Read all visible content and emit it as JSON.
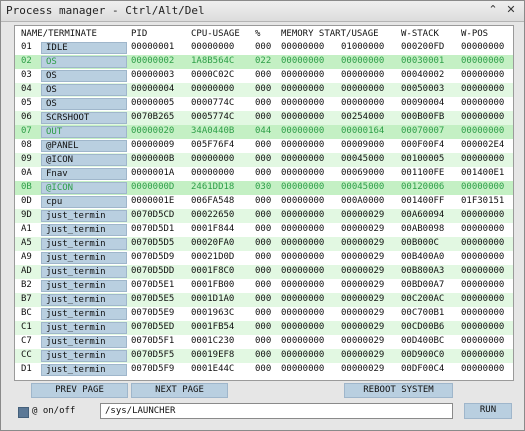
{
  "window": {
    "title": "Process manager - Ctrl/Alt/Del",
    "close_glyph": "✕",
    "collapse_glyph": "⌃"
  },
  "columns": [
    "NAME/TERMINATE",
    "PID",
    "CPU-USAGE",
    "%",
    "MEMORY START/USAGE",
    "",
    "W-STACK",
    "W-POS"
  ],
  "rows": [
    {
      "num": "01",
      "name": "IDLE",
      "pid": "00000001",
      "cpu": "00000000",
      "pct": "000",
      "mem_start": "00000000",
      "mem_usage": "01000000",
      "wstack": "000200FD",
      "wpos": "00000000",
      "state": "normal"
    },
    {
      "num": "02",
      "name": "OS",
      "pid": "00000002",
      "cpu": "1A8B564C",
      "pct": "022",
      "mem_start": "00000000",
      "mem_usage": "00000000",
      "wstack": "00030001",
      "wpos": "00000000",
      "state": "selected"
    },
    {
      "num": "03",
      "name": "OS",
      "pid": "00000003",
      "cpu": "0000C02C",
      "pct": "000",
      "mem_start": "00000000",
      "mem_usage": "00000000",
      "wstack": "00040002",
      "wpos": "00000000",
      "state": "normal"
    },
    {
      "num": "04",
      "name": "OS",
      "pid": "00000004",
      "cpu": "00000000",
      "pct": "000",
      "mem_start": "00000000",
      "mem_usage": "00000000",
      "wstack": "00050003",
      "wpos": "00000000",
      "state": "green"
    },
    {
      "num": "05",
      "name": "OS",
      "pid": "00000005",
      "cpu": "0000774C",
      "pct": "000",
      "mem_start": "00000000",
      "mem_usage": "00000000",
      "wstack": "00090004",
      "wpos": "00000000",
      "state": "normal"
    },
    {
      "num": "06",
      "name": "SCRSHOOT",
      "pid": "0070B265",
      "cpu": "0005774C",
      "pct": "000",
      "mem_start": "00000000",
      "mem_usage": "00254000",
      "wstack": "000B00FB",
      "wpos": "00000000",
      "state": "green"
    },
    {
      "num": "07",
      "name": "OUT",
      "pid": "00000020",
      "cpu": "34A0440B",
      "pct": "044",
      "mem_start": "00000000",
      "mem_usage": "00000164",
      "wstack": "00070007",
      "wpos": "00000000",
      "state": "selected"
    },
    {
      "num": "08",
      "name": "@PANEL",
      "pid": "00000009",
      "cpu": "005F76F4",
      "pct": "000",
      "mem_start": "00000000",
      "mem_usage": "00009000",
      "wstack": "000F00F4",
      "wpos": "000002E4",
      "state": "normal"
    },
    {
      "num": "09",
      "name": "@ICON",
      "pid": "0000000B",
      "cpu": "00000000",
      "pct": "000",
      "mem_start": "00000000",
      "mem_usage": "00045000",
      "wstack": "00100005",
      "wpos": "00000000",
      "state": "green"
    },
    {
      "num": "0A",
      "name": "Fnav",
      "pid": "0000001A",
      "cpu": "00000000",
      "pct": "000",
      "mem_start": "00000000",
      "mem_usage": "00069000",
      "wstack": "001100FE",
      "wpos": "001400E1",
      "state": "normal"
    },
    {
      "num": "0B",
      "name": "@ICON",
      "pid": "0000000D",
      "cpu": "2461DD18",
      "pct": "030",
      "mem_start": "00000000",
      "mem_usage": "00045000",
      "wstack": "00120006",
      "wpos": "00000000",
      "state": "selected"
    },
    {
      "num": "0D",
      "name": "cpu",
      "pid": "0000001E",
      "cpu": "006FA548",
      "pct": "000",
      "mem_start": "00000000",
      "mem_usage": "000A0000",
      "wstack": "001400FF",
      "wpos": "01F30151",
      "state": "normal"
    },
    {
      "num": "9D",
      "name": "just_termin",
      "pid": "0070D5CD",
      "cpu": "00022650",
      "pct": "000",
      "mem_start": "00000000",
      "mem_usage": "00000029",
      "wstack": "00A60094",
      "wpos": "00000000",
      "state": "green"
    },
    {
      "num": "A1",
      "name": "just_termin",
      "pid": "0070D5D1",
      "cpu": "0001F844",
      "pct": "000",
      "mem_start": "00000000",
      "mem_usage": "00000029",
      "wstack": "00AB0098",
      "wpos": "00000000",
      "state": "normal"
    },
    {
      "num": "A5",
      "name": "just_termin",
      "pid": "0070D5D5",
      "cpu": "00020FA0",
      "pct": "000",
      "mem_start": "00000000",
      "mem_usage": "00000029",
      "wstack": "00B000C",
      "wpos": "00000000",
      "state": "green"
    },
    {
      "num": "A9",
      "name": "just_termin",
      "pid": "0070D5D9",
      "cpu": "00021D0D",
      "pct": "000",
      "mem_start": "00000000",
      "mem_usage": "00000029",
      "wstack": "00B400A0",
      "wpos": "00000000",
      "state": "normal"
    },
    {
      "num": "AD",
      "name": "just_termin",
      "pid": "0070D5DD",
      "cpu": "0001F8C0",
      "pct": "000",
      "mem_start": "00000000",
      "mem_usage": "00000029",
      "wstack": "00B800A3",
      "wpos": "00000000",
      "state": "green"
    },
    {
      "num": "B2",
      "name": "just_termin",
      "pid": "0070D5E1",
      "cpu": "0001FB00",
      "pct": "000",
      "mem_start": "00000000",
      "mem_usage": "00000029",
      "wstack": "00BD00A7",
      "wpos": "00000000",
      "state": "normal"
    },
    {
      "num": "B7",
      "name": "just_termin",
      "pid": "0070D5E5",
      "cpu": "0001D1A0",
      "pct": "000",
      "mem_start": "00000000",
      "mem_usage": "00000029",
      "wstack": "00C200AC",
      "wpos": "00000000",
      "state": "green"
    },
    {
      "num": "BC",
      "name": "just_termin",
      "pid": "0070D5E9",
      "cpu": "0001963C",
      "pct": "000",
      "mem_start": "00000000",
      "mem_usage": "00000029",
      "wstack": "00C700B1",
      "wpos": "00000000",
      "state": "normal"
    },
    {
      "num": "C1",
      "name": "just_termin",
      "pid": "0070D5ED",
      "cpu": "0001FB54",
      "pct": "000",
      "mem_start": "00000000",
      "mem_usage": "00000029",
      "wstack": "00CD00B6",
      "wpos": "00000000",
      "state": "green"
    },
    {
      "num": "C7",
      "name": "just_termin",
      "pid": "0070D5F1",
      "cpu": "0001C230",
      "pct": "000",
      "mem_start": "00000000",
      "mem_usage": "00000029",
      "wstack": "00D400BC",
      "wpos": "00000000",
      "state": "normal"
    },
    {
      "num": "CC",
      "name": "just_termin",
      "pid": "0070D5F5",
      "cpu": "00019EF8",
      "pct": "000",
      "mem_start": "00000000",
      "mem_usage": "00000029",
      "wstack": "00D900C0",
      "wpos": "00000000",
      "state": "green"
    },
    {
      "num": "D1",
      "name": "just_termin",
      "pid": "0070D5F9",
      "cpu": "0001E44C",
      "pct": "000",
      "mem_start": "00000000",
      "mem_usage": "00000029",
      "wstack": "00DF00C4",
      "wpos": "00000000",
      "state": "normal"
    }
  ],
  "buttons": {
    "prev_page": "PREV PAGE",
    "next_page": "NEXT PAGE",
    "reboot": "REBOOT SYSTEM",
    "run": "RUN"
  },
  "run_bar": {
    "checkbox_label": "@ on/off",
    "command_value": "/sys/LAUNCHER"
  }
}
